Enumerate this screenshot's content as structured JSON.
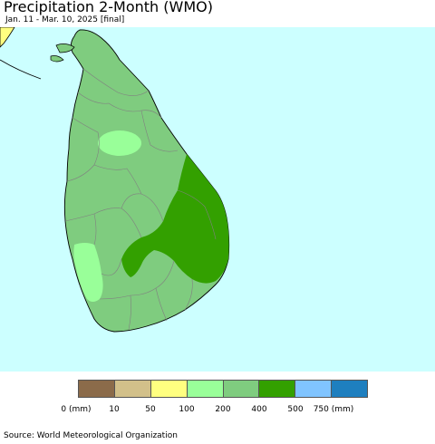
{
  "title": "Precipitation 2-Month (WMO)",
  "subtitle": "Jan. 11 - Mar. 10, 2025 [final]",
  "source": "Source: World Meteorological Organization",
  "colors": {
    "ocean": "#ccffff",
    "cat_200_400": "#7fcc7f",
    "cat_100_200": "#99ff99",
    "cat_400_500": "#33a000",
    "cat_50_100": "#ffff80",
    "boundary": "#808080",
    "coast": "#000000"
  },
  "legend": {
    "categories": [
      {
        "label": "0 (mm)",
        "color": "#8b6b4a"
      },
      {
        "label": "10",
        "color": "#d2c08a"
      },
      {
        "label": "50",
        "color": "#ffff80"
      },
      {
        "label": "100",
        "color": "#99ff99"
      },
      {
        "label": "200",
        "color": "#7fcc7f"
      },
      {
        "label": "400",
        "color": "#33a000"
      },
      {
        "label": "500",
        "color": "#80c4ff"
      },
      {
        "label": "750 (mm)",
        "color": "#1e7fbf"
      }
    ]
  }
}
